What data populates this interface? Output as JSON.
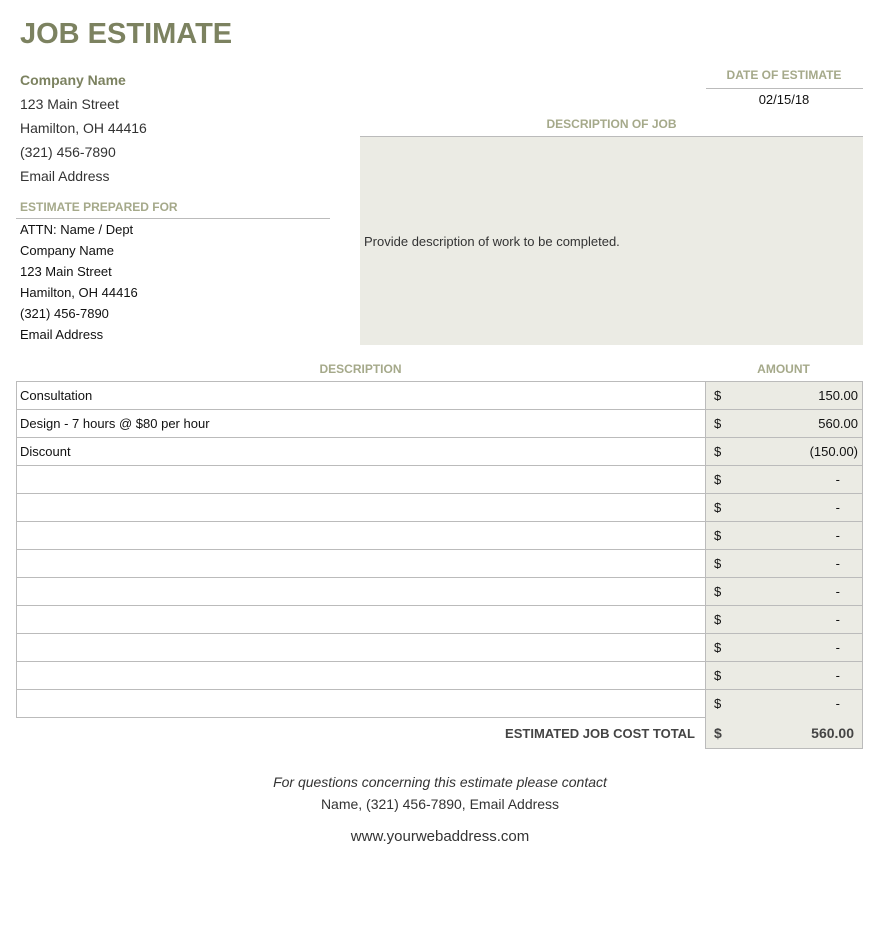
{
  "title": "JOB ESTIMATE",
  "company": {
    "name": "Company Name",
    "street": "123 Main Street",
    "city": "Hamilton, OH  44416",
    "phone": "(321) 456-7890",
    "email": "Email Address"
  },
  "prepared_for": {
    "label": "ESTIMATE PREPARED FOR",
    "lines": [
      "ATTN: Name / Dept",
      "Company Name",
      "123 Main Street",
      "Hamilton, OH  44416",
      "(321) 456-7890",
      "Email Address"
    ]
  },
  "date": {
    "label": "DATE OF ESTIMATE",
    "value": "02/15/18"
  },
  "job_description": {
    "label": "DESCRIPTION OF JOB",
    "text": "Provide description of work to be completed."
  },
  "table": {
    "headers": {
      "description": "DESCRIPTION",
      "amount": "AMOUNT"
    },
    "currency": "$",
    "rows": [
      {
        "description": "Consultation",
        "amount": "150.00"
      },
      {
        "description": "Design - 7 hours @ $80 per hour",
        "amount": "560.00"
      },
      {
        "description": "Discount",
        "amount": "(150.00)"
      },
      {
        "description": "",
        "amount": "-"
      },
      {
        "description": "",
        "amount": "-"
      },
      {
        "description": "",
        "amount": "-"
      },
      {
        "description": "",
        "amount": "-"
      },
      {
        "description": "",
        "amount": "-"
      },
      {
        "description": "",
        "amount": "-"
      },
      {
        "description": "",
        "amount": "-"
      },
      {
        "description": "",
        "amount": "-"
      },
      {
        "description": "",
        "amount": "-"
      }
    ],
    "total_label": "ESTIMATED JOB COST TOTAL",
    "total": "560.00"
  },
  "footer": {
    "line1": "For questions concerning this estimate please contact",
    "line2": "Name, (321) 456-7890, Email Address",
    "website": "www.yourwebaddress.com"
  }
}
